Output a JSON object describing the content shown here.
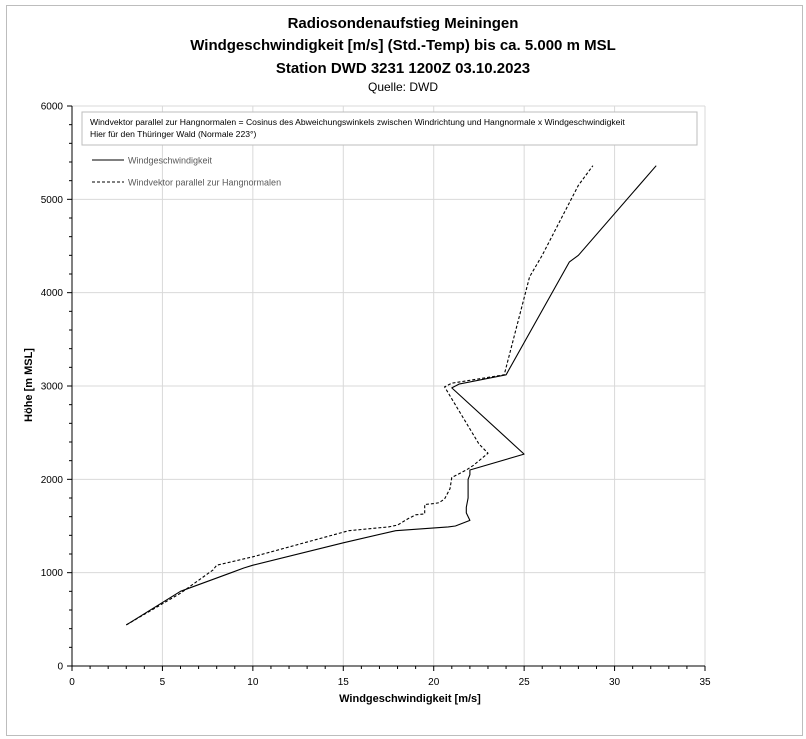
{
  "chart_data": {
    "type": "line",
    "title_lines": [
      "Radiosondenaufstieg Meiningen",
      "Windgeschwindigkeit [m/s] (Std.-Temp) bis ca. 5.000 m MSL",
      "Station DWD 3231 1200Z 03.10.2023"
    ],
    "source": "Quelle: DWD",
    "xlabel": "Windgeschwindigkeit [m/s]",
    "ylabel": "Höhe [m MSL]",
    "xlim": [
      0,
      35
    ],
    "ylim": [
      0,
      6000
    ],
    "x_ticks": [
      "0",
      "5",
      "10",
      "15",
      "20",
      "25",
      "30",
      "35"
    ],
    "y_ticks": [
      "0",
      "1000",
      "2000",
      "3000",
      "4000",
      "5000",
      "6000"
    ],
    "grid": true,
    "note_lines": [
      "Windvektor parallel zur Hangnormalen = Cosinus des Abweichungswinkels zwischen Windrichtung und Hangnormale x Windgeschwindigkeit",
      "Hier für den Thüringer Wald  (Normale 223°)"
    ],
    "legend_position": "top-left",
    "series": [
      {
        "name": "Windgeschwindigkeit",
        "style": "solid",
        "color": "#000000",
        "points": [
          [
            3.0,
            440
          ],
          [
            6.0,
            800
          ],
          [
            8.8,
            1000
          ],
          [
            9.5,
            1050
          ],
          [
            10.0,
            1080
          ],
          [
            15.0,
            1320
          ],
          [
            17.9,
            1450
          ],
          [
            20.8,
            1490
          ],
          [
            21.2,
            1500
          ],
          [
            22.0,
            1560
          ],
          [
            21.8,
            1640
          ],
          [
            21.8,
            1700
          ],
          [
            21.9,
            1800
          ],
          [
            21.9,
            1900
          ],
          [
            21.9,
            2000
          ],
          [
            22.0,
            2050
          ],
          [
            22.0,
            2100
          ],
          [
            25.0,
            2270
          ],
          [
            21.0,
            2980
          ],
          [
            21.4,
            3020
          ],
          [
            24.0,
            3120
          ],
          [
            27.5,
            4330
          ],
          [
            28.0,
            4400
          ],
          [
            32.3,
            5360
          ]
        ]
      },
      {
        "name": "Windvektor parallel zur Hangnormalen",
        "style": "dashed",
        "color": "#000000",
        "points": [
          [
            3.0,
            440
          ],
          [
            6.0,
            780
          ],
          [
            7.8,
            1030
          ],
          [
            8.0,
            1080
          ],
          [
            10.0,
            1170
          ],
          [
            15.3,
            1450
          ],
          [
            17.5,
            1490
          ],
          [
            18.0,
            1510
          ],
          [
            18.6,
            1580
          ],
          [
            18.8,
            1600
          ],
          [
            19.0,
            1620
          ],
          [
            19.5,
            1630
          ],
          [
            19.5,
            1730
          ],
          [
            20.0,
            1740
          ],
          [
            20.3,
            1750
          ],
          [
            20.6,
            1790
          ],
          [
            20.9,
            1900
          ],
          [
            21.0,
            2020
          ],
          [
            21.8,
            2100
          ],
          [
            22.2,
            2150
          ],
          [
            23.0,
            2280
          ],
          [
            22.5,
            2380
          ],
          [
            20.6,
            2990
          ],
          [
            21.0,
            3030
          ],
          [
            23.9,
            3120
          ],
          [
            25.3,
            4170
          ],
          [
            26.0,
            4400
          ],
          [
            28.0,
            5150
          ],
          [
            28.8,
            5360
          ]
        ]
      }
    ]
  }
}
